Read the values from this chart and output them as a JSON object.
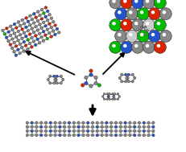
{
  "bg_color": "#ffffff",
  "arrow_color": "#000000",
  "fig_width": 2.31,
  "fig_height": 1.89,
  "dpi": 100,
  "atom_colors": {
    "C": "#888888",
    "N": "#2255cc",
    "O": "#dd2200",
    "F": "#00bb00",
    "H": "#cccccc",
    "Cl": "#22bb22"
  }
}
